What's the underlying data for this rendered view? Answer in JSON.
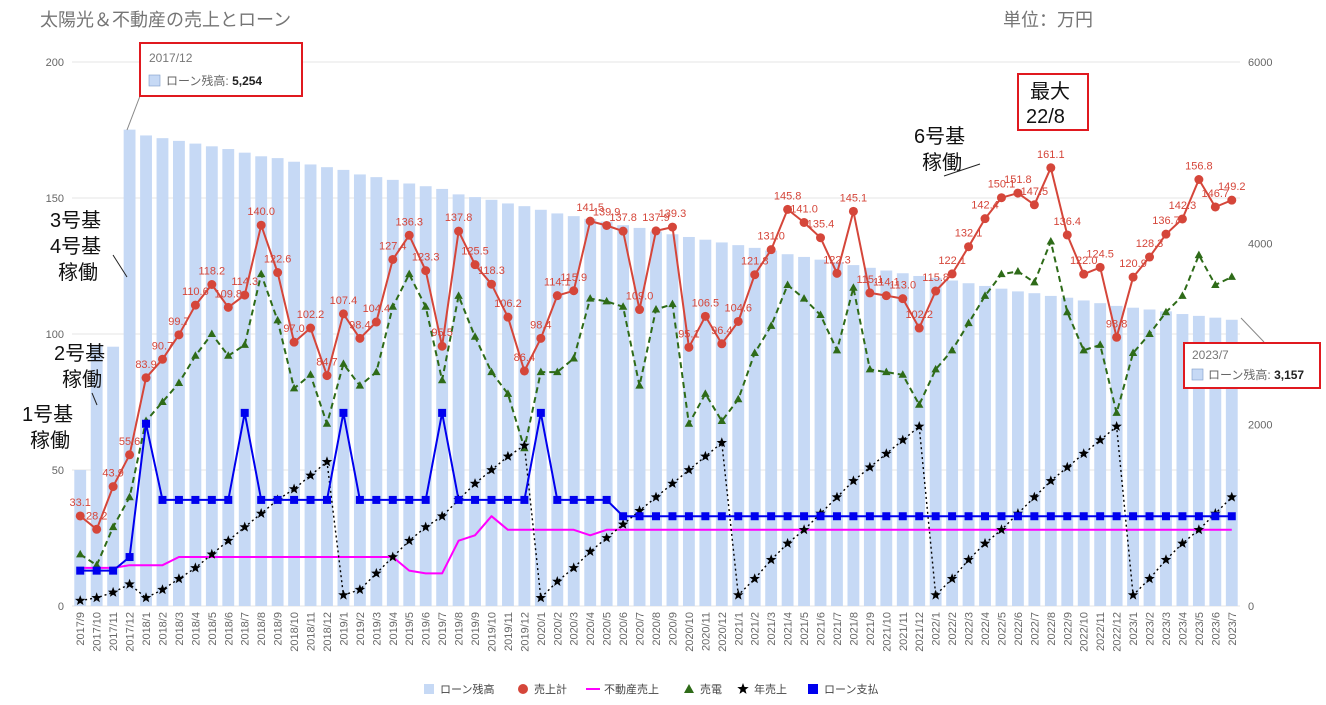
{
  "header": {
    "title": "太陽光＆不動産の売上とローン",
    "unit": "単位：万円"
  },
  "annotations": {
    "g1": [
      "1号基",
      "稼働"
    ],
    "g2": [
      "2号基",
      "稼働"
    ],
    "g34": [
      "3号基",
      "4号基",
      "稼働"
    ],
    "g6": [
      "6号基",
      "稼働"
    ],
    "max": [
      "最大",
      "22/8"
    ]
  },
  "tooltips": [
    {
      "date": "2017/12",
      "label": "ローン残高: ",
      "value": "5,254"
    },
    {
      "date": "2023/7",
      "label": "ローン残高: ",
      "value": "3,157"
    }
  ],
  "colors": {
    "bar": "#c6d9f5",
    "sales": "#d5463a",
    "realestate": "#ff00ff",
    "power": "#2e6b18",
    "annual": "#000000",
    "payment": "#0000ee"
  },
  "chart_data": {
    "type": "bar+line",
    "title": "太陽光＆不動産の売上とローン",
    "left_axis": {
      "range": [
        0,
        200
      ],
      "ticks": [
        "0",
        "50",
        "100",
        "150",
        "200"
      ]
    },
    "right_axis": {
      "range": [
        0,
        6000
      ],
      "ticks": [
        "0",
        "2000",
        "4000",
        "6000"
      ]
    },
    "categories": [
      "2017/9",
      "2017/10",
      "2017/11",
      "2017/12",
      "2018/1",
      "2018/2",
      "2018/3",
      "2018/4",
      "2018/5",
      "2018/6",
      "2018/7",
      "2018/8",
      "2018/9",
      "2018/10",
      "2018/11",
      "2018/12",
      "2019/1",
      "2019/2",
      "2019/3",
      "2019/4",
      "2019/5",
      "2019/6",
      "2019/7",
      "2019/8",
      "2019/9",
      "2019/10",
      "2019/11",
      "2019/12",
      "2020/1",
      "2020/2",
      "2020/3",
      "2020/4",
      "2020/5",
      "2020/6",
      "2020/7",
      "2020/8",
      "2020/9",
      "2020/10",
      "2020/11",
      "2020/12",
      "2021/1",
      "2021/2",
      "2021/3",
      "2021/4",
      "2021/5",
      "2021/6",
      "2021/7",
      "2021/8",
      "2021/9",
      "2021/10",
      "2021/11",
      "2021/12",
      "2022/1",
      "2022/2",
      "2022/3",
      "2022/4",
      "2022/5",
      "2022/6",
      "2022/7",
      "2022/8",
      "2022/9",
      "2022/10",
      "2022/11",
      "2022/12",
      "2023/1",
      "2023/2",
      "2023/3",
      "2023/4",
      "2023/5",
      "2023/6",
      "2023/7"
    ],
    "legend": [
      "ローン残高",
      "売上計",
      "不動産売上",
      "売電",
      "年売上",
      "ローン支払"
    ],
    "series": [
      {
        "name": "ローン残高",
        "axis": "right",
        "kind": "bar",
        "values": [
          1500,
          2880,
          2860,
          5254,
          5190,
          5160,
          5130,
          5100,
          5070,
          5040,
          5000,
          4960,
          4940,
          4900,
          4870,
          4840,
          4810,
          4760,
          4730,
          4700,
          4660,
          4630,
          4600,
          4540,
          4510,
          4480,
          4440,
          4410,
          4370,
          4330,
          4300,
          4270,
          4240,
          4200,
          4170,
          4130,
          4100,
          4070,
          4040,
          4010,
          3980,
          3950,
          3920,
          3880,
          3850,
          3820,
          3790,
          3760,
          3730,
          3700,
          3670,
          3640,
          3620,
          3590,
          3560,
          3530,
          3500,
          3470,
          3450,
          3420,
          3400,
          3370,
          3340,
          3310,
          3290,
          3270,
          3250,
          3220,
          3200,
          3180,
          3157
        ]
      },
      {
        "name": "売上計",
        "axis": "left",
        "kind": "line",
        "values": [
          33.1,
          28.2,
          43.9,
          55.6,
          83.9,
          90.7,
          99.7,
          110.6,
          118.2,
          109.8,
          114.3,
          140.0,
          122.6,
          97.0,
          102.2,
          84.7,
          107.4,
          98.4,
          104.4,
          127.4,
          136.3,
          123.3,
          95.5,
          137.8,
          125.5,
          118.3,
          106.2,
          86.4,
          98.4,
          114.1,
          115.9,
          141.5,
          139.9,
          137.8,
          109.0,
          137.9,
          139.3,
          95.1,
          106.5,
          96.4,
          104.6,
          121.8,
          131.0,
          145.8,
          141.0,
          135.4,
          122.3,
          145.1,
          115.1,
          114.1,
          113.0,
          102.2,
          115.8,
          122.1,
          132.1,
          142.4,
          150.1,
          151.8,
          147.5,
          161.1,
          136.4,
          122.0,
          124.5,
          98.8,
          120.9,
          128.3,
          136.7,
          142.3,
          156.8,
          146.7,
          149.2
        ],
        "labels": [
          "33.1",
          "28.2",
          "43.9",
          "55.6",
          "83.9",
          "90.7",
          "99.7",
          "110.6",
          "118.2",
          "109.8",
          "114.3",
          "140.0",
          "122.6",
          "97.0",
          "102.2",
          "84.7",
          "107.4",
          "98.4",
          "104.4",
          "127.4",
          "136.3",
          "123.3",
          "95.5",
          "137.8",
          "125.5",
          "118.3",
          "106.2",
          "86.4",
          "98.4",
          "114.1",
          "115.9",
          "141.5",
          "139.9",
          "137.8",
          "109.0",
          "137.9",
          "139.3",
          "95.1",
          "106.5",
          "96.4",
          "104.6",
          "121.8",
          "131.0",
          "145.8",
          "141.0",
          "135.4",
          "122.3",
          "145.1",
          "115.1",
          "114.1",
          "113.0",
          "102.2",
          "115.8",
          "122.1",
          "132.1",
          "142.4",
          "150.1",
          "151.8",
          "147.5",
          "161.1",
          "136.4",
          "122.0",
          "124.5",
          "98.8",
          "120.9",
          "128.3",
          "136.7",
          "142.3",
          "156.8",
          "146.7",
          "149.2"
        ]
      },
      {
        "name": "不動産売上",
        "axis": "left",
        "kind": "line",
        "values": [
          14,
          14,
          14,
          15,
          15,
          15,
          18,
          18,
          18,
          18,
          18,
          18,
          18,
          18,
          18,
          18,
          18,
          18,
          18,
          18,
          13,
          12,
          12,
          24,
          26,
          33,
          28,
          28,
          28,
          28,
          28,
          26,
          28,
          28,
          28,
          28,
          28,
          28,
          28,
          28,
          28,
          28,
          28,
          28,
          28,
          28,
          28,
          28,
          28,
          28,
          28,
          28,
          28,
          28,
          28,
          28,
          28,
          28,
          28,
          28,
          28,
          28,
          28,
          28,
          28,
          28,
          28,
          28,
          28,
          28,
          28
        ]
      },
      {
        "name": "売電",
        "axis": "left",
        "kind": "line",
        "values": [
          19,
          15,
          29,
          40,
          68,
          75,
          82,
          92,
          100,
          92,
          96,
          122,
          105,
          80,
          85,
          67,
          89,
          81,
          86,
          110,
          122,
          110,
          83,
          114,
          99,
          86,
          78,
          58,
          86,
          86,
          91,
          113,
          112,
          110,
          81,
          109,
          111,
          67,
          78,
          68,
          76,
          93,
          103,
          118,
          113,
          107,
          94,
          117,
          87,
          86,
          85,
          74,
          87,
          94,
          104,
          114,
          122,
          123,
          119,
          134,
          108,
          94,
          96,
          71,
          93,
          100,
          108,
          114,
          129,
          118,
          121
        ]
      },
      {
        "name": "年売上",
        "axis": "left",
        "kind": "line",
        "values": [
          2,
          3,
          5,
          8,
          3,
          6,
          10,
          14,
          19,
          24,
          29,
          34,
          39,
          43,
          48,
          53,
          4,
          6,
          12,
          18,
          24,
          29,
          33,
          39,
          45,
          50,
          55,
          59,
          3,
          9,
          14,
          20,
          25,
          30,
          35,
          40,
          45,
          50,
          55,
          60,
          4,
          10,
          17,
          23,
          28,
          34,
          40,
          46,
          51,
          56,
          61,
          66,
          4,
          10,
          17,
          23,
          28,
          34,
          40,
          46,
          51,
          56,
          61,
          66,
          4,
          10,
          17,
          23,
          28,
          34,
          40
        ]
      },
      {
        "name": "ローン支払",
        "axis": "left",
        "kind": "line",
        "values": [
          13,
          13,
          13,
          18,
          67,
          39,
          39,
          39,
          39,
          39,
          71,
          39,
          39,
          39,
          39,
          39,
          71,
          39,
          39,
          39,
          39,
          39,
          71,
          39,
          39,
          39,
          39,
          39,
          71,
          39,
          39,
          39,
          39,
          33,
          33,
          33,
          33,
          33,
          33,
          33,
          33,
          33,
          33,
          33,
          33,
          33,
          33,
          33,
          33,
          33,
          33,
          33,
          33,
          33,
          33,
          33,
          33,
          33,
          33,
          33,
          33,
          33,
          33,
          33,
          33,
          33,
          33,
          33,
          33,
          33,
          33
        ]
      }
    ]
  }
}
